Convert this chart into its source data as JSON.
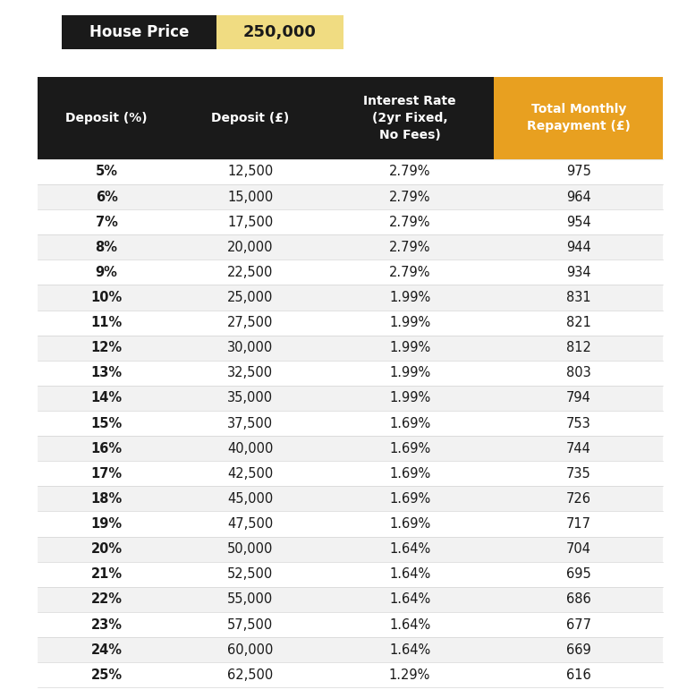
{
  "house_price_label": "House Price",
  "house_price_value": "250,000",
  "header_bg_color": "#1a1a1a",
  "header_gold_color": "#E8A020",
  "header_light_gold": "#F0DC82",
  "col_headers": [
    "Deposit (%)",
    "Deposit (£)",
    "Interest Rate\n(2yr Fixed,\nNo Fees)",
    "Total Monthly\nRepayment (£)"
  ],
  "rows": [
    [
      "5%",
      "12,500",
      "2.79%",
      "975"
    ],
    [
      "6%",
      "15,000",
      "2.79%",
      "964"
    ],
    [
      "7%",
      "17,500",
      "2.79%",
      "954"
    ],
    [
      "8%",
      "20,000",
      "2.79%",
      "944"
    ],
    [
      "9%",
      "22,500",
      "2.79%",
      "934"
    ],
    [
      "10%",
      "25,000",
      "1.99%",
      "831"
    ],
    [
      "11%",
      "27,500",
      "1.99%",
      "821"
    ],
    [
      "12%",
      "30,000",
      "1.99%",
      "812"
    ],
    [
      "13%",
      "32,500",
      "1.99%",
      "803"
    ],
    [
      "14%",
      "35,000",
      "1.99%",
      "794"
    ],
    [
      "15%",
      "37,500",
      "1.69%",
      "753"
    ],
    [
      "16%",
      "40,000",
      "1.69%",
      "744"
    ],
    [
      "17%",
      "42,500",
      "1.69%",
      "735"
    ],
    [
      "18%",
      "45,000",
      "1.69%",
      "726"
    ],
    [
      "19%",
      "47,500",
      "1.69%",
      "717"
    ],
    [
      "20%",
      "50,000",
      "1.64%",
      "704"
    ],
    [
      "21%",
      "52,500",
      "1.64%",
      "695"
    ],
    [
      "22%",
      "55,000",
      "1.64%",
      "686"
    ],
    [
      "23%",
      "57,500",
      "1.64%",
      "677"
    ],
    [
      "24%",
      "60,000",
      "1.64%",
      "669"
    ],
    [
      "25%",
      "62,500",
      "1.29%",
      "616"
    ]
  ],
  "bg_color": "#ffffff",
  "row_odd_color": "#ffffff",
  "row_even_color": "#f2f2f2",
  "text_color_dark": "#1a1a1a",
  "text_color_white": "#ffffff"
}
